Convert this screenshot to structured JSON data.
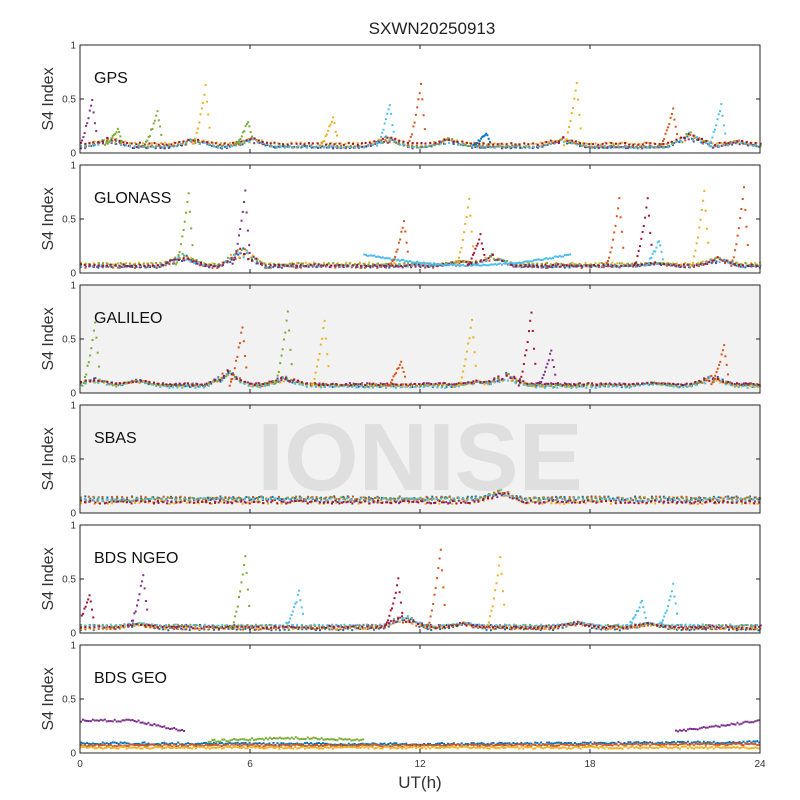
{
  "chart_data": {
    "type": "scatter",
    "title": "SXWN20250913",
    "watermark": "IONISE",
    "xlabel": "UT(h)",
    "ylabel": "S4 Index",
    "xlim": [
      0,
      24
    ],
    "ylim": [
      0,
      1
    ],
    "xticks": [
      "0",
      "6",
      "12",
      "18",
      "24"
    ],
    "yticks": [
      "0",
      "0.5",
      "1"
    ],
    "grid": false,
    "palette": [
      "#0072BD",
      "#D95319",
      "#EDB120",
      "#7E2F8E",
      "#77AC30",
      "#4DBEEE",
      "#A2142F"
    ],
    "panels": [
      {
        "label": "GPS",
        "background": "#ffffff",
        "baseline": [
          0.07,
          0.02
        ],
        "bumps": [
          [
            1.0,
            0.15
          ],
          [
            4.0,
            0.14
          ],
          [
            6.0,
            0.15
          ],
          [
            10.8,
            0.16
          ],
          [
            13.0,
            0.14
          ],
          [
            17.0,
            0.15
          ],
          [
            21.5,
            0.2
          ],
          [
            23.2,
            0.12
          ]
        ],
        "spikes": [
          [
            0.4,
            0.5,
            3
          ],
          [
            1.3,
            0.22,
            4
          ],
          [
            2.7,
            0.4,
            4
          ],
          [
            4.4,
            0.62,
            2
          ],
          [
            5.9,
            0.3,
            4
          ],
          [
            8.9,
            0.33,
            2
          ],
          [
            10.9,
            0.45,
            5
          ],
          [
            12.0,
            0.64,
            1
          ],
          [
            14.3,
            0.18,
            0
          ],
          [
            17.5,
            0.66,
            2
          ],
          [
            20.9,
            0.4,
            1
          ],
          [
            22.6,
            0.45,
            5
          ]
        ]
      },
      {
        "label": "GLONASS",
        "background": "#ffffff",
        "baseline": [
          0.07,
          0.02
        ],
        "bumps": [
          [
            3.6,
            0.18
          ],
          [
            5.7,
            0.25
          ],
          [
            13.4,
            0.12
          ],
          [
            14.5,
            0.18
          ],
          [
            20.3,
            0.1
          ],
          [
            22.5,
            0.15
          ]
        ],
        "arcs": [
          [
            10.0,
            17.3,
            0.17,
            0.07,
            5
          ]
        ],
        "spikes": [
          [
            3.8,
            0.75,
            4
          ],
          [
            5.8,
            0.75,
            3
          ],
          [
            11.4,
            0.48,
            1
          ],
          [
            13.7,
            0.68,
            2
          ],
          [
            14.1,
            0.35,
            6
          ],
          [
            19.0,
            0.68,
            1
          ],
          [
            20.0,
            0.68,
            6
          ],
          [
            20.4,
            0.3,
            5
          ],
          [
            22.0,
            0.75,
            2
          ],
          [
            23.4,
            0.78,
            1
          ]
        ]
      },
      {
        "label": "GALILEO",
        "background": "#f2f2f2",
        "baseline": [
          0.07,
          0.02
        ],
        "bumps": [
          [
            0.5,
            0.14
          ],
          [
            2.0,
            0.13
          ],
          [
            5.2,
            0.22
          ],
          [
            7.2,
            0.16
          ],
          [
            14.0,
            0.12
          ],
          [
            15.0,
            0.2
          ],
          [
            20.2,
            0.1
          ],
          [
            22.3,
            0.17
          ]
        ],
        "spikes": [
          [
            0.5,
            0.65,
            4
          ],
          [
            5.7,
            0.62,
            1
          ],
          [
            7.3,
            0.75,
            4
          ],
          [
            8.6,
            0.67,
            2
          ],
          [
            11.3,
            0.3,
            1
          ],
          [
            13.8,
            0.68,
            2
          ],
          [
            15.9,
            0.75,
            6
          ],
          [
            16.6,
            0.4,
            3
          ],
          [
            22.7,
            0.44,
            1
          ]
        ]
      },
      {
        "label": "SBAS",
        "background": "#f2f2f2",
        "baseline": [
          0.12,
          0.03
        ],
        "bumps": [
          [
            14.8,
            0.22
          ]
        ],
        "spikes": []
      },
      {
        "label": "BDS NGEO",
        "background": "#ffffff",
        "baseline": [
          0.05,
          0.02
        ],
        "bumps": [
          [
            2.0,
            0.1
          ],
          [
            11.4,
            0.18
          ],
          [
            13.5,
            0.1
          ],
          [
            17.5,
            0.11
          ],
          [
            20.0,
            0.1
          ]
        ],
        "spikes": [
          [
            0.3,
            0.35,
            6
          ],
          [
            2.2,
            0.55,
            3
          ],
          [
            5.8,
            0.72,
            4
          ],
          [
            7.7,
            0.38,
            5
          ],
          [
            11.2,
            0.5,
            6
          ],
          [
            12.7,
            0.78,
            1
          ],
          [
            14.8,
            0.7,
            2
          ],
          [
            19.8,
            0.3,
            5
          ],
          [
            20.9,
            0.45,
            5
          ]
        ]
      },
      {
        "label": "BDS GEO",
        "background": "#ffffff",
        "geo_tracks": [
          {
            "color": 3,
            "segments": [
              [
                0.0,
                3.7,
                [
                  0.3,
                  0.3,
                  0.2
                ]
              ],
              [
                21.0,
                24.0,
                [
                  0.2,
                  0.25,
                  0.3
                ]
              ]
            ]
          },
          {
            "color": 4,
            "segments": [
              [
                4.5,
                10.0,
                [
                  0.11,
                  0.14,
                  0.12
                ]
              ]
            ]
          },
          {
            "color": 0,
            "segments": [
              [
                0.0,
                24.0,
                [
                  0.09,
                  0.08,
                  0.1
                ]
              ]
            ]
          },
          {
            "color": 1,
            "segments": [
              [
                0.0,
                24.0,
                [
                  0.07,
                  0.07,
                  0.08
                ]
              ]
            ]
          },
          {
            "color": 2,
            "segments": [
              [
                0.0,
                24.0,
                [
                  0.05,
                  0.05,
                  0.05
                ]
              ]
            ]
          }
        ]
      }
    ]
  }
}
